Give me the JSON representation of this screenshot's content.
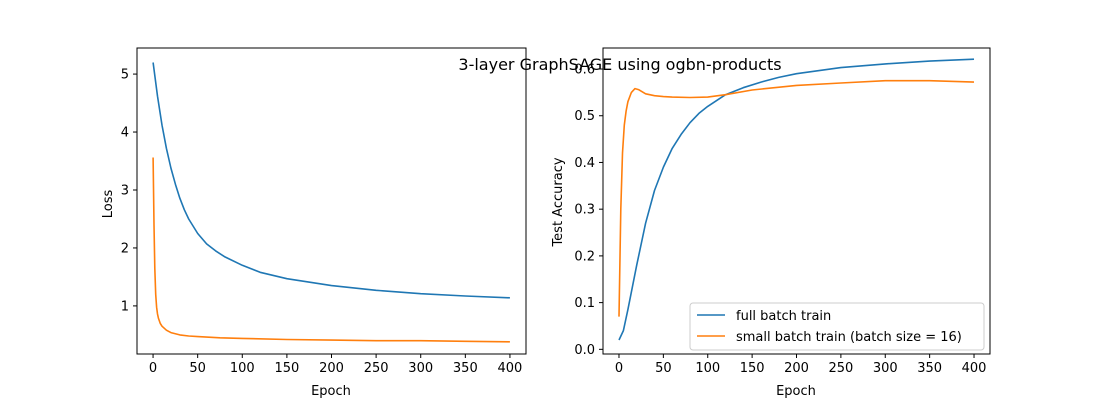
{
  "figure": {
    "title": "3-layer GraphSAGE using ogbn-products"
  },
  "chart_data": [
    {
      "type": "line",
      "xlabel": "Epoch",
      "ylabel": "Loss",
      "xlim": [
        -18,
        418
      ],
      "ylim": [
        0.17,
        5.45
      ],
      "xticks": [
        0,
        50,
        100,
        150,
        200,
        250,
        300,
        350,
        400
      ],
      "yticks": [
        1,
        2,
        3,
        4,
        5
      ],
      "series": [
        {
          "name": "full batch train",
          "color": "#1f77b4",
          "x": [
            0,
            5,
            10,
            15,
            20,
            25,
            30,
            35,
            40,
            50,
            60,
            70,
            80,
            100,
            120,
            150,
            200,
            250,
            300,
            350,
            400
          ],
          "values": [
            5.2,
            4.62,
            4.12,
            3.72,
            3.38,
            3.1,
            2.86,
            2.66,
            2.5,
            2.25,
            2.07,
            1.95,
            1.85,
            1.7,
            1.58,
            1.47,
            1.35,
            1.27,
            1.21,
            1.17,
            1.14
          ]
        },
        {
          "name": "small batch train (batch size = 16)",
          "color": "#ff7f0e",
          "x": [
            0,
            1,
            2,
            3,
            4,
            5,
            6,
            8,
            10,
            15,
            20,
            30,
            40,
            50,
            75,
            100,
            150,
            200,
            250,
            300,
            350,
            400
          ],
          "values": [
            3.56,
            2.4,
            1.65,
            1.2,
            0.98,
            0.86,
            0.79,
            0.7,
            0.65,
            0.58,
            0.54,
            0.5,
            0.48,
            0.47,
            0.45,
            0.44,
            0.42,
            0.41,
            0.4,
            0.4,
            0.39,
            0.38
          ]
        }
      ]
    },
    {
      "type": "line",
      "xlabel": "Epoch",
      "ylabel": "Test Accuracy",
      "xlim": [
        -18,
        418
      ],
      "ylim": [
        -0.01,
        0.645
      ],
      "xticks": [
        0,
        50,
        100,
        150,
        200,
        250,
        300,
        350,
        400
      ],
      "yticks": [
        0.0,
        0.1,
        0.2,
        0.3,
        0.4,
        0.5,
        0.6
      ],
      "legend_position": "lower-right",
      "series": [
        {
          "name": "full batch train",
          "color": "#1f77b4",
          "x": [
            0,
            5,
            10,
            20,
            30,
            40,
            50,
            60,
            70,
            80,
            90,
            100,
            120,
            140,
            160,
            180,
            200,
            250,
            300,
            350,
            400
          ],
          "values": [
            0.02,
            0.04,
            0.085,
            0.18,
            0.27,
            0.34,
            0.39,
            0.43,
            0.46,
            0.485,
            0.505,
            0.52,
            0.545,
            0.56,
            0.572,
            0.582,
            0.59,
            0.603,
            0.611,
            0.617,
            0.621
          ]
        },
        {
          "name": "small batch train (batch size = 16)",
          "color": "#ff7f0e",
          "x": [
            0,
            2,
            4,
            6,
            8,
            10,
            14,
            18,
            22,
            30,
            40,
            50,
            60,
            80,
            100,
            120,
            150,
            200,
            250,
            300,
            350,
            400
          ],
          "values": [
            0.07,
            0.3,
            0.42,
            0.48,
            0.51,
            0.53,
            0.55,
            0.558,
            0.556,
            0.547,
            0.543,
            0.541,
            0.54,
            0.539,
            0.54,
            0.545,
            0.555,
            0.565,
            0.57,
            0.575,
            0.575,
            0.572
          ]
        }
      ]
    }
  ]
}
